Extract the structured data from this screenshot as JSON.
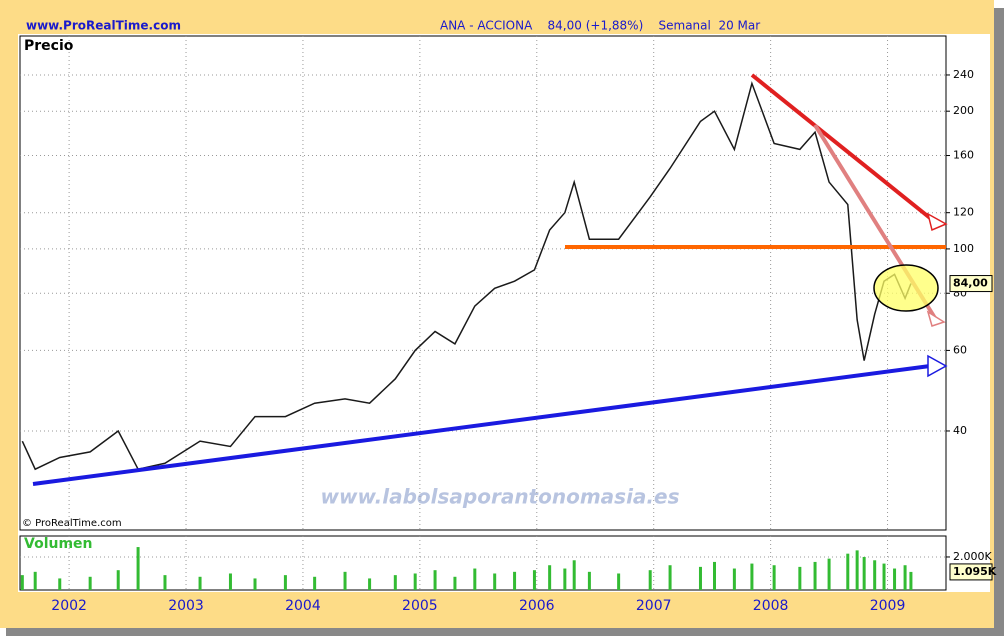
{
  "header": {
    "site": "www.ProRealTime.com",
    "title": "ANA - ACCIONA    84,00 (+1,88%)    Semanal  20 Mar"
  },
  "watermark": "www.labolsaporantonomasia.es",
  "copyright": "© ProRealTime.com",
  "chart_data": [
    {
      "type": "line",
      "title": "Precio",
      "log_scale": true,
      "grid": true,
      "x": [
        2001.6,
        2001.71,
        2001.92,
        2002.18,
        2002.42,
        2002.59,
        2002.82,
        2003.12,
        2003.38,
        2003.59,
        2003.85,
        2004.1,
        2004.36,
        2004.57,
        2004.79,
        2004.96,
        2005.13,
        2005.3,
        2005.47,
        2005.64,
        2005.81,
        2005.98,
        2006.11,
        2006.24,
        2006.32,
        2006.45,
        2006.7,
        2006.97,
        2007.14,
        2007.4,
        2007.52,
        2007.69,
        2007.84,
        2008.03,
        2008.25,
        2008.38,
        2008.5,
        2008.66,
        2008.74,
        2008.8,
        2008.89,
        2008.97,
        2009.06,
        2009.15,
        2009.2
      ],
      "series": [
        {
          "name": "ANA",
          "color": "#1a1a1a",
          "values": [
            38,
            33,
            35,
            36,
            40,
            33,
            34,
            38,
            37,
            43,
            43,
            46,
            47,
            46,
            52,
            60,
            66,
            62,
            75,
            82,
            85,
            90,
            110,
            120,
            140,
            105,
            105,
            130,
            150,
            190,
            200,
            165,
            230,
            170,
            165,
            180,
            140,
            125,
            70,
            57,
            72,
            85,
            88,
            78,
            84
          ]
        }
      ],
      "xlim": [
        2001.58,
        2009.5
      ],
      "xticks": [
        2002,
        2003,
        2004,
        2005,
        2006,
        2007,
        2008,
        2009
      ],
      "ylim": [
        24.3,
        292
      ],
      "yticks": [
        40,
        60,
        80,
        100,
        120,
        160,
        200,
        240
      ],
      "last_value": 84,
      "last_value_label": "84,00"
    },
    {
      "type": "bar",
      "title": "Volumen",
      "grid": true,
      "x": [
        2001.6,
        2001.71,
        2001.92,
        2002.18,
        2002.42,
        2002.59,
        2002.82,
        2003.12,
        2003.38,
        2003.59,
        2003.85,
        2004.1,
        2004.36,
        2004.57,
        2004.79,
        2004.96,
        2005.13,
        2005.3,
        2005.47,
        2005.64,
        2005.81,
        2005.98,
        2006.11,
        2006.24,
        2006.32,
        2006.45,
        2006.7,
        2006.97,
        2007.14,
        2007.4,
        2007.52,
        2007.69,
        2007.84,
        2008.03,
        2008.25,
        2008.38,
        2008.5,
        2008.66,
        2008.74,
        2008.8,
        2008.89,
        2008.97,
        2009.06,
        2009.15,
        2009.2
      ],
      "series": [
        {
          "name": "Volumen",
          "color": "#33bb33",
          "values": [
            900,
            1100,
            700,
            800,
            1200,
            2600,
            900,
            800,
            1000,
            700,
            900,
            800,
            1100,
            700,
            900,
            1000,
            1200,
            800,
            1300,
            1000,
            1100,
            1200,
            1500,
            1300,
            1800,
            1100,
            1000,
            1200,
            1500,
            1400,
            1700,
            1300,
            1600,
            1500,
            1400,
            1700,
            1900,
            2200,
            2400,
            2000,
            1800,
            1600,
            1300,
            1500,
            1095
          ]
        }
      ],
      "xlim": [
        2001.58,
        2009.5
      ],
      "ylim": [
        0,
        3270
      ],
      "yticks": [
        {
          "value": 2000,
          "label": "2.000K"
        }
      ],
      "last_value": 1095,
      "last_value_label": "1.095K"
    }
  ]
}
